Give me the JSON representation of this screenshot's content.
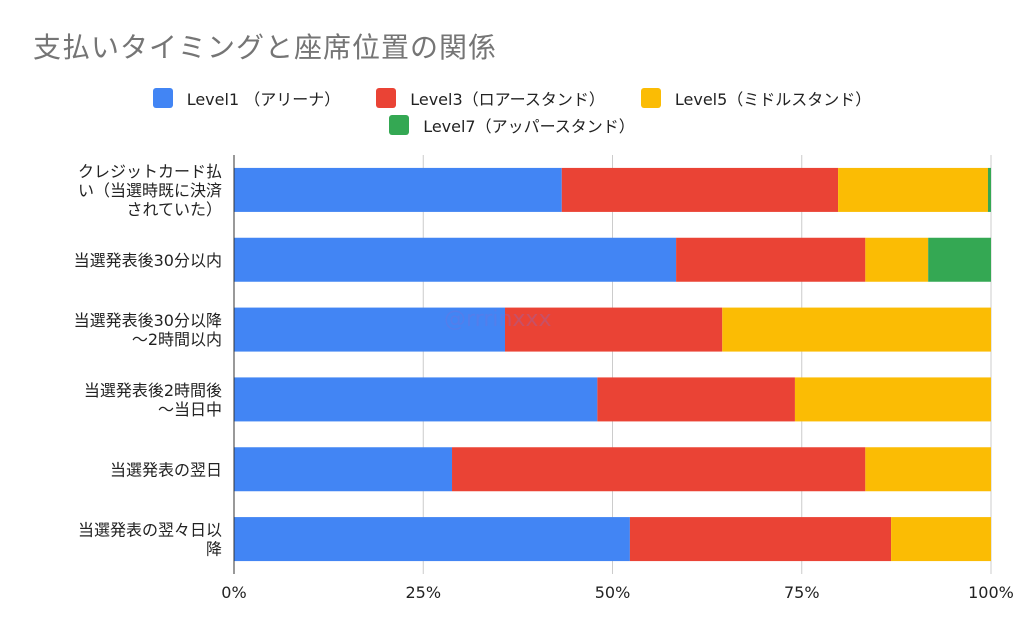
{
  "chart_data": {
    "type": "bar",
    "orientation": "horizontal",
    "stacked": "percent",
    "title": "支払いタイミングと座席位置の関係",
    "categories": [
      [
        "クレジットカード払",
        "い（当選時既に決済",
        "されていた）"
      ],
      [
        "当選発表後30分以内"
      ],
      [
        "当選発表後30分以降",
        "〜2時間以内"
      ],
      [
        "当選発表後2時間後",
        "〜当日中"
      ],
      [
        "当選発表の翌日"
      ],
      [
        "当選発表の翌々日以",
        "降"
      ]
    ],
    "series": [
      {
        "name": "Level1 （アリーナ）",
        "color": "#4285f4",
        "values": [
          43.3,
          58.4,
          35.8,
          48.0,
          28.8,
          52.3
        ]
      },
      {
        "name": "Level3（ロアースタンド）",
        "color": "#ea4335",
        "values": [
          36.5,
          25.0,
          28.7,
          26.1,
          54.6,
          34.5
        ]
      },
      {
        "name": "Level5（ミドルスタンド）",
        "color": "#fbbc04",
        "values": [
          19.8,
          8.3,
          35.5,
          25.9,
          16.6,
          13.2
        ]
      },
      {
        "name": "Level7（アッパースタンド）",
        "color": "#34a853",
        "values": [
          0.4,
          8.3,
          0,
          0,
          0,
          0
        ]
      }
    ],
    "xlim": [
      0,
      100
    ],
    "xticks": [
      "0%",
      "25%",
      "50%",
      "75%",
      "100%"
    ],
    "xtick_values": [
      0,
      25,
      50,
      75,
      100
    ],
    "grid": true,
    "legend_position": "top",
    "watermark": "@rrrinxxx"
  }
}
